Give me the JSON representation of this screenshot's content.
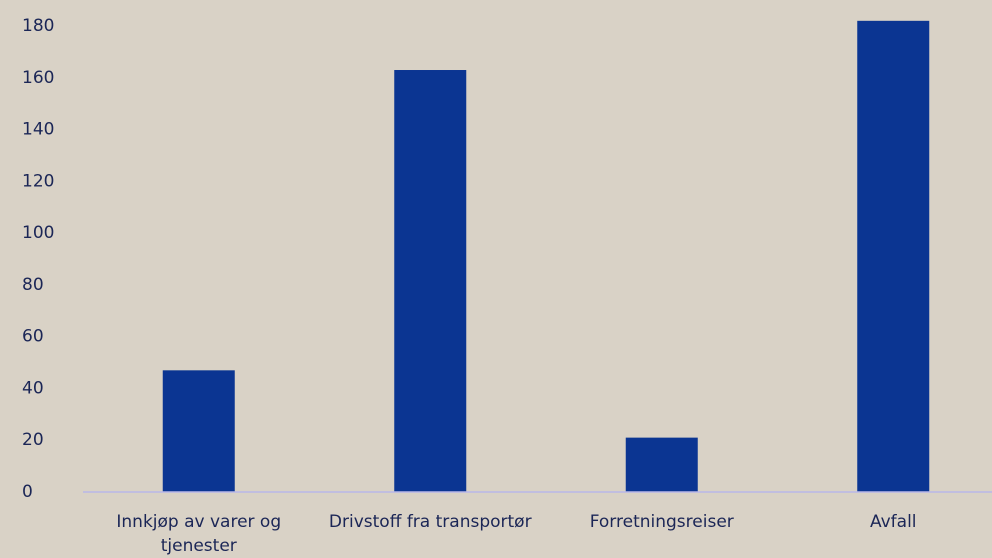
{
  "chart_data": {
    "type": "bar",
    "categories": [
      "Innkjøp av varer og tjenester",
      "Drivstoff fra transportør",
      "Forretningsreiser",
      "Avfall"
    ],
    "values": [
      47,
      163,
      21,
      182
    ],
    "color": "#0b3592",
    "ylim": [
      0,
      180
    ],
    "yticks": [
      0,
      20,
      40,
      60,
      80,
      100,
      120,
      140,
      160,
      180
    ],
    "grid": false
  }
}
